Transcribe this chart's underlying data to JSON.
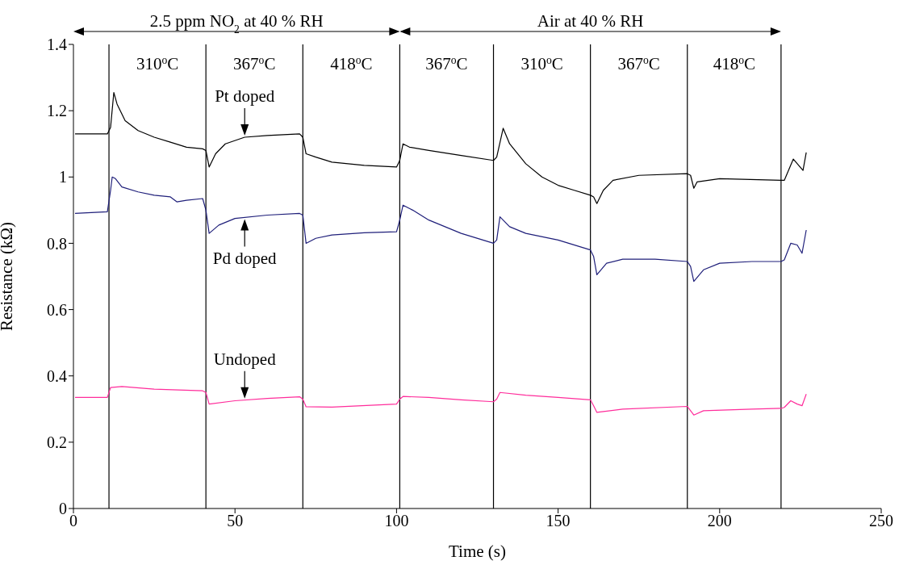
{
  "chart_data": {
    "type": "line",
    "xlabel": "Time (s)",
    "ylabel": "Resistance (kΩ)",
    "xlim": [
      0,
      250
    ],
    "xticks": [
      0,
      50,
      100,
      150,
      200,
      250
    ],
    "ylim": [
      0,
      1.4
    ],
    "yticks": [
      0,
      0.2,
      0.4,
      0.6,
      0.8,
      1.0,
      1.2,
      1.4
    ],
    "marker": "none",
    "line_style": "solid",
    "series": [
      {
        "color": "#000000",
        "x": [
          0.5,
          10.5,
          11.5,
          12.5,
          13.5,
          16,
          20,
          25,
          30,
          35,
          40,
          41,
          42,
          44,
          47,
          53,
          60,
          70,
          71,
          72,
          75,
          80,
          90,
          100,
          101,
          102,
          104,
          110,
          120,
          130,
          131,
          133,
          135,
          140,
          145,
          150,
          155,
          160,
          161,
          162,
          164,
          167,
          175,
          190,
          191,
          192,
          193,
          200,
          219,
          220,
          222.8,
          225.8,
          226.8
        ],
        "values": [
          1.13,
          1.13,
          1.15,
          1.255,
          1.22,
          1.17,
          1.14,
          1.12,
          1.105,
          1.09,
          1.085,
          1.08,
          1.03,
          1.07,
          1.1,
          1.12,
          1.125,
          1.13,
          1.12,
          1.07,
          1.06,
          1.045,
          1.035,
          1.03,
          1.05,
          1.1,
          1.09,
          1.08,
          1.065,
          1.05,
          1.06,
          1.147,
          1.1,
          1.04,
          1.0,
          0.975,
          0.96,
          0.945,
          0.94,
          0.92,
          0.96,
          0.99,
          1.005,
          1.01,
          1.005,
          0.966,
          0.985,
          0.995,
          0.99,
          0.99,
          1.054,
          1.02,
          1.074
        ]
      },
      {
        "color": "#1f1f7a",
        "x": [
          0.5,
          10.5,
          11.5,
          12,
          13,
          15,
          20,
          25,
          30,
          32,
          35,
          40,
          41,
          42,
          45,
          50,
          60,
          70,
          71,
          72,
          75,
          80,
          90,
          100,
          101,
          102,
          105,
          110,
          120,
          130,
          131,
          132,
          135,
          140,
          150,
          160,
          161,
          162,
          165,
          170,
          180,
          190,
          191,
          192,
          195,
          200,
          210,
          219,
          220,
          222,
          224,
          225.5,
          226.8
        ],
        "values": [
          0.89,
          0.895,
          0.96,
          1.0,
          0.995,
          0.97,
          0.955,
          0.945,
          0.94,
          0.925,
          0.93,
          0.935,
          0.9,
          0.83,
          0.855,
          0.875,
          0.885,
          0.89,
          0.885,
          0.8,
          0.815,
          0.825,
          0.832,
          0.835,
          0.87,
          0.915,
          0.9,
          0.87,
          0.83,
          0.8,
          0.81,
          0.88,
          0.85,
          0.83,
          0.81,
          0.78,
          0.76,
          0.705,
          0.74,
          0.752,
          0.752,
          0.745,
          0.73,
          0.685,
          0.72,
          0.74,
          0.745,
          0.745,
          0.75,
          0.8,
          0.795,
          0.77,
          0.84
        ]
      },
      {
        "color": "#ff2d9b",
        "x": [
          0.5,
          10.5,
          11.5,
          15,
          25,
          40,
          41,
          42,
          50,
          60,
          70,
          71,
          72,
          80,
          100,
          101,
          102,
          110,
          120,
          130,
          131,
          132,
          140,
          150,
          160,
          161,
          162,
          170,
          190,
          191,
          192,
          195,
          210,
          219,
          220,
          222,
          224,
          225.5,
          226.8
        ],
        "values": [
          0.335,
          0.335,
          0.365,
          0.368,
          0.36,
          0.355,
          0.35,
          0.315,
          0.325,
          0.332,
          0.337,
          0.33,
          0.307,
          0.306,
          0.315,
          0.33,
          0.338,
          0.335,
          0.328,
          0.322,
          0.33,
          0.35,
          0.342,
          0.335,
          0.328,
          0.31,
          0.29,
          0.3,
          0.308,
          0.295,
          0.282,
          0.295,
          0.3,
          0.302,
          0.305,
          0.325,
          0.315,
          0.31,
          0.345
        ]
      }
    ],
    "ref_lines": [
      {
        "axis": "x",
        "value": 11,
        "color": "#000000"
      },
      {
        "axis": "x",
        "value": 41,
        "color": "#000000"
      },
      {
        "axis": "x",
        "value": 71,
        "color": "#000000"
      },
      {
        "axis": "x",
        "value": 101,
        "color": "#000000"
      },
      {
        "axis": "x",
        "value": 130,
        "color": "#000000"
      },
      {
        "axis": "x",
        "value": 160,
        "color": "#000000"
      },
      {
        "axis": "x",
        "value": 190,
        "color": "#000000"
      },
      {
        "axis": "x",
        "value": 219,
        "color": "#000000"
      }
    ],
    "annotations": [
      "2.5 ppm NO$_{2}$ at 40 % RH",
      "Air at 40 % RH",
      "310$^{o}$C",
      "367$^{o}$C",
      "418$^{o}$C",
      "367$^{o}$C",
      "310$^{o}$C",
      "367$^{o}$C",
      "418$^{o}$C",
      "Pt doped",
      "Pd doped",
      "Undoped"
    ]
  }
}
